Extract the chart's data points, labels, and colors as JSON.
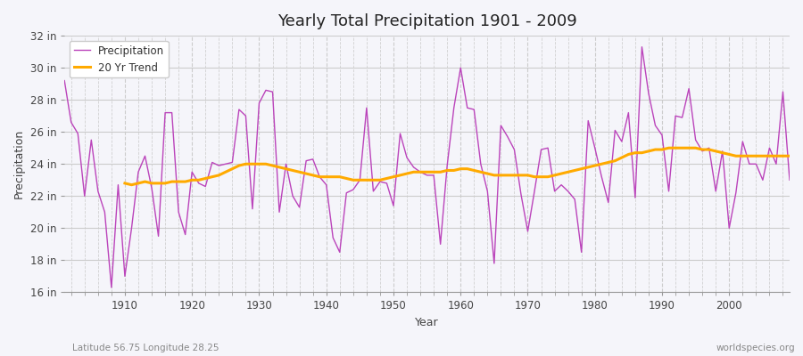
{
  "title": "Yearly Total Precipitation 1901 - 2009",
  "xlabel": "Year",
  "ylabel": "Precipitation",
  "subtitle_left": "Latitude 56.75 Longitude 28.25",
  "subtitle_right": "worldspecies.org",
  "ylim": [
    16,
    32
  ],
  "ytick_labels": [
    "16 in",
    "18 in",
    "20 in",
    "22 in",
    "24 in",
    "26 in",
    "28 in",
    "30 in",
    "32 in"
  ],
  "ytick_values": [
    16,
    18,
    20,
    22,
    24,
    26,
    28,
    30,
    32
  ],
  "xlim": [
    1901,
    2009
  ],
  "xtick_values": [
    1910,
    1920,
    1930,
    1940,
    1950,
    1960,
    1970,
    1980,
    1990,
    2000
  ],
  "precip_color": "#bb44bb",
  "trend_color": "#ffaa00",
  "bg_color": "#f5f5fa",
  "outer_bg": "#f5f5fa",
  "legend_labels": [
    "Precipitation",
    "20 Yr Trend"
  ],
  "years": [
    1901,
    1902,
    1903,
    1904,
    1905,
    1906,
    1907,
    1908,
    1909,
    1910,
    1911,
    1912,
    1913,
    1914,
    1915,
    1916,
    1917,
    1918,
    1919,
    1920,
    1921,
    1922,
    1923,
    1924,
    1925,
    1926,
    1927,
    1928,
    1929,
    1930,
    1931,
    1932,
    1933,
    1934,
    1935,
    1936,
    1937,
    1938,
    1939,
    1940,
    1941,
    1942,
    1943,
    1944,
    1945,
    1946,
    1947,
    1948,
    1949,
    1950,
    1951,
    1952,
    1953,
    1954,
    1955,
    1956,
    1957,
    1958,
    1959,
    1960,
    1961,
    1962,
    1963,
    1964,
    1965,
    1966,
    1967,
    1968,
    1969,
    1970,
    1971,
    1972,
    1973,
    1974,
    1975,
    1976,
    1977,
    1978,
    1979,
    1980,
    1981,
    1982,
    1983,
    1984,
    1985,
    1986,
    1987,
    1988,
    1989,
    1990,
    1991,
    1992,
    1993,
    1994,
    1995,
    1996,
    1997,
    1998,
    1999,
    2000,
    2001,
    2002,
    2003,
    2004,
    2005,
    2006,
    2007,
    2008,
    2009
  ],
  "precip": [
    29.2,
    26.6,
    25.9,
    22.0,
    25.5,
    22.3,
    21.0,
    16.3,
    22.7,
    17.0,
    20.0,
    23.5,
    24.5,
    22.5,
    19.5,
    27.2,
    27.2,
    21.0,
    19.6,
    23.5,
    22.8,
    22.6,
    24.1,
    23.9,
    24.0,
    24.1,
    27.4,
    27.0,
    21.2,
    27.8,
    28.6,
    28.5,
    21.0,
    24.0,
    22.0,
    21.3,
    24.2,
    24.3,
    23.2,
    22.7,
    19.4,
    18.5,
    22.2,
    22.4,
    23.0,
    27.5,
    22.3,
    22.9,
    22.8,
    21.4,
    25.9,
    24.4,
    23.8,
    23.5,
    23.3,
    23.3,
    19.0,
    23.9,
    27.5,
    30.0,
    27.5,
    27.4,
    24.0,
    22.3,
    17.8,
    26.4,
    25.7,
    24.9,
    22.1,
    19.8,
    22.3,
    24.9,
    25.0,
    22.3,
    22.7,
    22.3,
    21.8,
    18.5,
    26.7,
    25.0,
    23.2,
    21.6,
    26.1,
    25.4,
    27.2,
    21.9,
    31.3,
    28.4,
    26.4,
    25.8,
    22.3,
    27.0,
    26.9,
    28.7,
    25.5,
    24.8,
    25.0,
    22.3,
    24.8,
    20.0,
    22.2,
    25.4,
    24.0,
    24.0,
    23.0,
    25.0,
    24.0,
    28.5,
    23.0
  ],
  "trend": [
    null,
    null,
    null,
    null,
    null,
    null,
    null,
    null,
    null,
    22.8,
    22.7,
    22.8,
    22.9,
    22.8,
    22.8,
    22.8,
    22.9,
    22.9,
    22.9,
    23.0,
    23.0,
    23.1,
    23.2,
    23.3,
    23.5,
    23.7,
    23.9,
    24.0,
    24.0,
    24.0,
    24.0,
    23.9,
    23.8,
    23.7,
    23.6,
    23.5,
    23.4,
    23.3,
    23.2,
    23.2,
    23.2,
    23.2,
    23.1,
    23.0,
    23.0,
    23.0,
    23.0,
    23.0,
    23.1,
    23.2,
    23.3,
    23.4,
    23.5,
    23.5,
    23.5,
    23.5,
    23.5,
    23.6,
    23.6,
    23.7,
    23.7,
    23.6,
    23.5,
    23.4,
    23.3,
    23.3,
    23.3,
    23.3,
    23.3,
    23.3,
    23.2,
    23.2,
    23.2,
    23.3,
    23.4,
    23.5,
    23.6,
    23.7,
    23.8,
    23.9,
    24.0,
    24.1,
    24.2,
    24.4,
    24.6,
    24.7,
    24.7,
    24.8,
    24.9,
    24.9,
    25.0,
    25.0,
    25.0,
    25.0,
    25.0,
    24.9,
    24.9,
    24.8,
    24.7,
    24.6,
    24.5,
    24.5,
    24.5,
    24.5,
    24.5,
    24.5,
    24.5,
    24.5,
    24.5
  ]
}
